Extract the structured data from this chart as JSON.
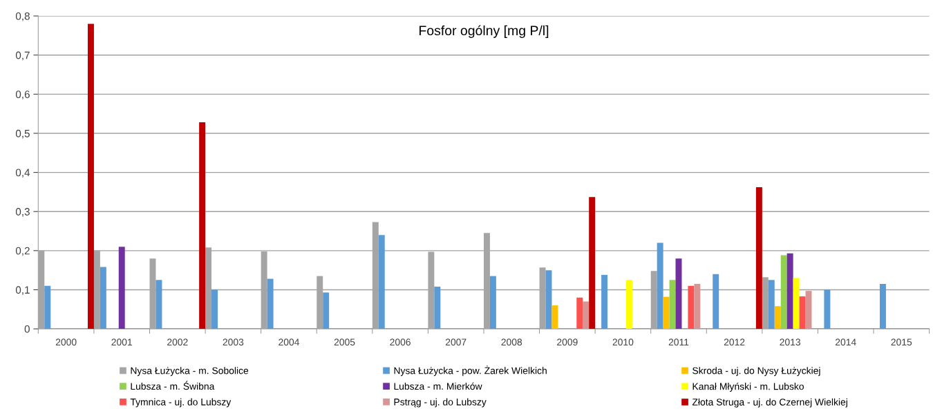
{
  "chart_data": {
    "type": "bar",
    "title": "Fosfor ogólny [mg P/l]",
    "categories": [
      "2000",
      "2001",
      "2002",
      "2003",
      "2004",
      "2005",
      "2006",
      "2007",
      "2008",
      "2009",
      "2010",
      "2011",
      "2012",
      "2013",
      "2014",
      "2015"
    ],
    "series": [
      {
        "name": "Nysa Łużycka - m. Sobolice",
        "color": "#a5a5a5",
        "values": [
          0.2,
          0.2,
          0.18,
          0.208,
          0.198,
          0.135,
          0.273,
          0.197,
          0.245,
          0.157,
          null,
          0.148,
          null,
          0.132,
          null,
          null
        ]
      },
      {
        "name": "Nysa Łużycka - pow. Żarek Wielkich",
        "color": "#5b9bd5",
        "values": [
          0.11,
          0.158,
          0.125,
          0.1,
          0.128,
          0.093,
          0.24,
          0.108,
          0.135,
          0.15,
          0.138,
          0.22,
          0.14,
          0.125,
          0.1,
          0.115
        ]
      },
      {
        "name": "Skroda - uj. do Nysy Łużyckiej",
        "color": "#ffc000",
        "values": [
          null,
          null,
          null,
          null,
          null,
          null,
          null,
          null,
          null,
          0.06,
          null,
          0.082,
          null,
          0.058,
          null,
          null
        ]
      },
      {
        "name": "Lubsza - m. Świbna",
        "color": "#92d050",
        "values": [
          null,
          null,
          null,
          null,
          null,
          null,
          null,
          null,
          null,
          null,
          null,
          0.125,
          null,
          0.188,
          null,
          null
        ]
      },
      {
        "name": "Lubsza - m. Mierków",
        "color": "#7030a0",
        "values": [
          null,
          0.21,
          null,
          null,
          null,
          null,
          null,
          null,
          null,
          null,
          null,
          0.18,
          null,
          0.193,
          null,
          null
        ]
      },
      {
        "name": "Kanał Młyński - m. Lubsko",
        "color": "#ffff00",
        "values": [
          null,
          null,
          null,
          null,
          null,
          null,
          null,
          null,
          null,
          null,
          0.125,
          null,
          null,
          0.13,
          null,
          null
        ]
      },
      {
        "name": "Tymnica - uj. do Lubszy",
        "color": "#ff5050",
        "values": [
          null,
          null,
          null,
          null,
          null,
          null,
          null,
          null,
          null,
          0.08,
          null,
          0.11,
          null,
          0.083,
          null,
          null
        ]
      },
      {
        "name": "Pstrąg - uj. do Lubszy",
        "color": "#d99594",
        "values": [
          null,
          null,
          null,
          null,
          null,
          null,
          null,
          null,
          null,
          0.07,
          null,
          0.115,
          null,
          0.097,
          null,
          null
        ]
      },
      {
        "name": "Złota Struga - uj. do Czernej Wielkiej",
        "color": "#c00000",
        "values": [
          0.78,
          null,
          0.528,
          null,
          null,
          null,
          null,
          null,
          null,
          0.337,
          null,
          null,
          0.362,
          null,
          null,
          null
        ]
      }
    ],
    "ylim": [
      0,
      0.8
    ],
    "yticks": [
      0,
      {
        "value": 0.1,
        "label": "0,1"
      },
      {
        "value": 0.2,
        "label": "0,2"
      },
      {
        "value": 0.3,
        "label": "0,3"
      },
      {
        "value": 0.4,
        "label": "0,4"
      },
      {
        "value": 0.5,
        "label": "0,5"
      },
      {
        "value": 0.6,
        "label": "0,6"
      },
      {
        "value": 0.7,
        "label": "0,7"
      },
      {
        "value": 0.8,
        "label": "0,8"
      }
    ],
    "grid": "y",
    "legend": "bottom"
  }
}
